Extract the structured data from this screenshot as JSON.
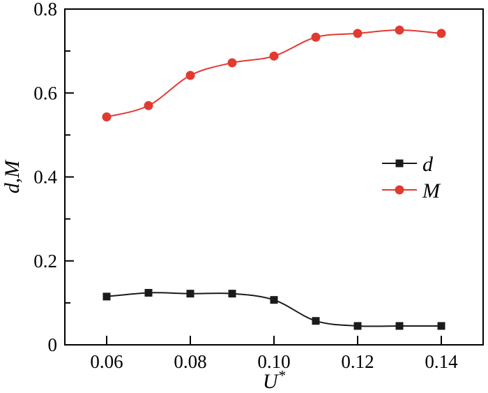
{
  "figure": {
    "kind": "scientific-line-plot",
    "background_color": "#ffffff",
    "axis_color": "#000000"
  },
  "chart_data": {
    "type": "line",
    "title": "",
    "xlabel": "U*",
    "ylabel": "d,M",
    "x": [
      0.06,
      0.07,
      0.08,
      0.09,
      0.1,
      0.11,
      0.12,
      0.13,
      0.14
    ],
    "series": [
      {
        "name": "d",
        "color": "#1b1b1b",
        "marker": "square",
        "values": [
          0.115,
          0.124,
          0.122,
          0.122,
          0.107,
          0.057,
          0.045,
          0.045,
          0.045
        ]
      },
      {
        "name": "M",
        "color": "#e23a30",
        "marker": "circle",
        "values": [
          0.543,
          0.57,
          0.642,
          0.672,
          0.688,
          0.733,
          0.742,
          0.75,
          0.742
        ]
      }
    ],
    "xlim": [
      0.05,
      0.15
    ],
    "ylim": [
      0,
      0.8
    ],
    "xticks": [
      0.06,
      0.08,
      0.1,
      0.12,
      0.14
    ],
    "xtick_labels": [
      "0.06",
      "0.08",
      "0.10",
      "0.12",
      "0.14"
    ],
    "yticks": [
      0,
      0.2,
      0.4,
      0.6,
      0.8
    ],
    "ytick_labels": [
      "0",
      "0.2",
      "0.4",
      "0.6",
      "0.8"
    ],
    "yticks_minor": [
      0.1,
      0.3,
      0.5,
      0.7
    ],
    "grid": false,
    "legend": {
      "position": "center-right",
      "entries": [
        "d",
        "M"
      ]
    }
  }
}
